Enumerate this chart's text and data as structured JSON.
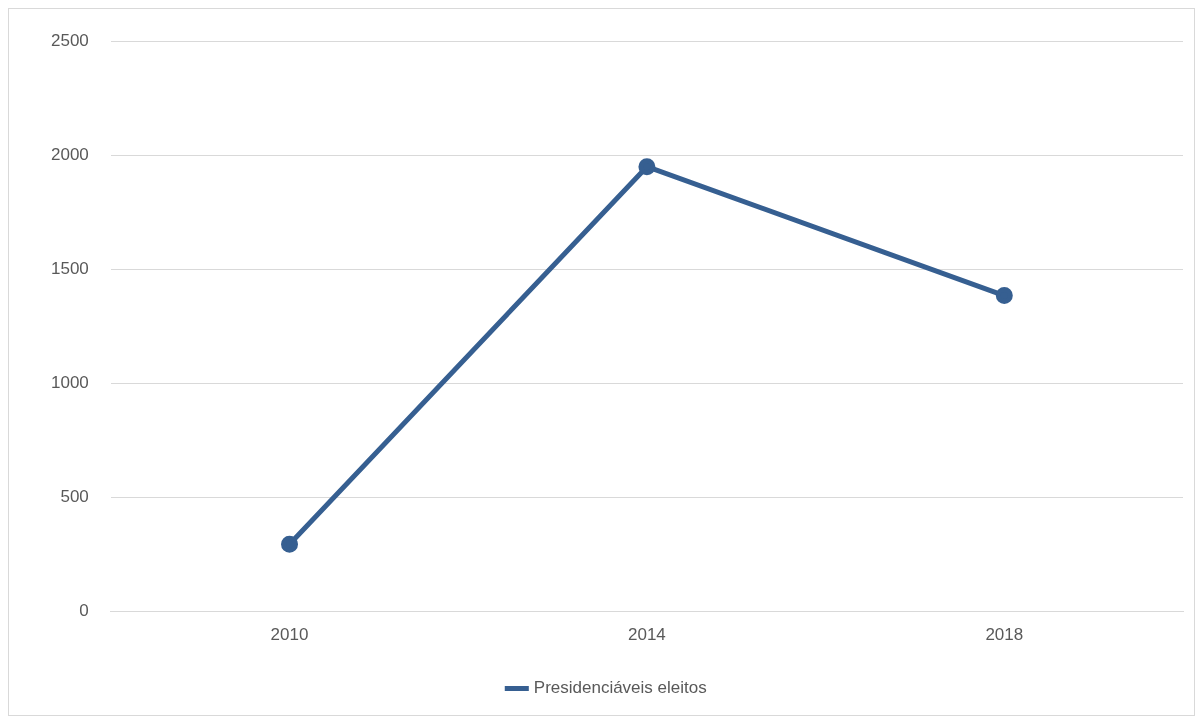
{
  "chart_data": {
    "type": "line",
    "categories": [
      "2010",
      "2014",
      "2018"
    ],
    "series": [
      {
        "name": "Presidenciáveis eleitos",
        "color": "#365f91",
        "values": [
          295,
          1950,
          1385
        ]
      }
    ],
    "ylim": [
      0,
      2500
    ],
    "yticks": [
      0,
      500,
      1000,
      1500,
      2000,
      2500
    ],
    "grid": "y",
    "legend": "bottom",
    "marker": "circle",
    "line_style": "solid"
  }
}
